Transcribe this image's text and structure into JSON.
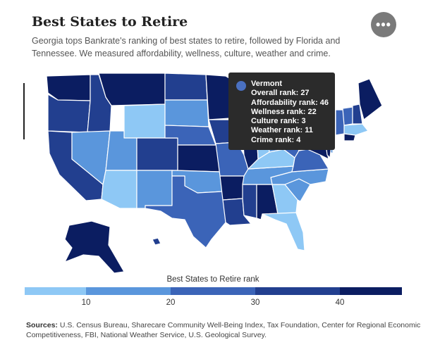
{
  "header": {
    "title": "Best States to Retire",
    "subtitle": "Georgia tops Bankrate's ranking of best states to retire, followed by Florida and Tennessee. We measured affordability, wellness, culture, weather and crime."
  },
  "menu": {
    "icon": "more-dots-icon",
    "label": "•••"
  },
  "tooltip": {
    "state": "Vermont",
    "color": "#4a70c0",
    "lines": [
      "Overall rank: 27",
      "Affordability rank: 46",
      "Wellness rank: 22",
      "Culture rank: 3",
      "Weather rank: 11",
      "Crime rank: 4"
    ]
  },
  "legend": {
    "title": "Best States to Retire rank",
    "ticks": [
      "10",
      "20",
      "30",
      "40"
    ],
    "colors": [
      "#8ec8f5",
      "#5a96dc",
      "#3b64b8",
      "#223f8f",
      "#0b1d61"
    ]
  },
  "sources": {
    "label": "Sources:",
    "text": " U.S. Census Bureau, Sharecare Community Well-Being Index, Tax Foundation, Center for Regional Economic Competitiveness, FBI, National Weather Service, U.S. Geological Survey."
  },
  "colors": {
    "c1": "#8ec8f5",
    "c2": "#5a96dc",
    "c3": "#3b64b8",
    "c4": "#223f8f",
    "c5": "#0b1d61",
    "border": "#ffffff"
  }
}
